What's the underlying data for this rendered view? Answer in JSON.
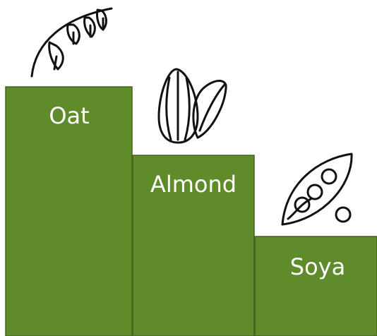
{
  "items": [
    {
      "label": "Oat"
    },
    {
      "label": "Almond"
    },
    {
      "label": "Soya"
    }
  ]
}
